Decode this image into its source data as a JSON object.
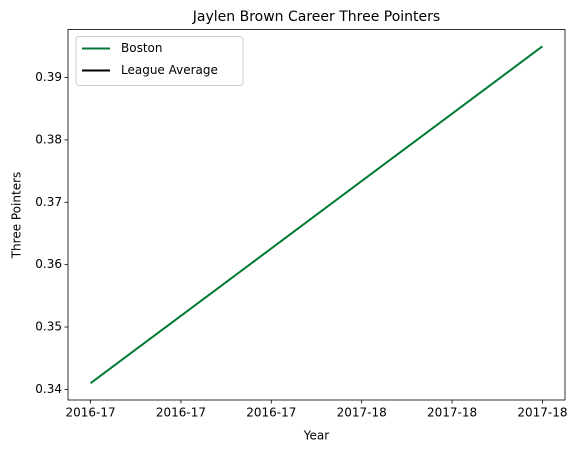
{
  "chart_data": {
    "type": "line",
    "title": "Jaylen Brown Career Three Pointers",
    "xlabel": "Year",
    "ylabel": "Three Pointers",
    "x": [
      0,
      1
    ],
    "series": [
      {
        "name": "Boston",
        "color": "#007a33",
        "values": [
          0.341,
          0.395
        ]
      },
      {
        "name": "League Average",
        "color": "#000000",
        "values": [
          null,
          null
        ]
      }
    ],
    "xlim": [
      -0.05,
      1.05
    ],
    "xticks": [
      {
        "value": 0,
        "label": "2016-17"
      },
      {
        "value": 0.2,
        "label": "2016-17"
      },
      {
        "value": 0.4,
        "label": "2016-17"
      },
      {
        "value": 0.6,
        "label": "2017-18"
      },
      {
        "value": 0.8,
        "label": "2017-18"
      },
      {
        "value": 1,
        "label": "2017-18"
      }
    ],
    "ylim": [
      0.3383,
      0.3977
    ],
    "yticks": [
      0.34,
      0.35,
      0.36,
      0.37,
      0.38,
      0.39
    ],
    "legend": "upper left",
    "grid": false
  }
}
